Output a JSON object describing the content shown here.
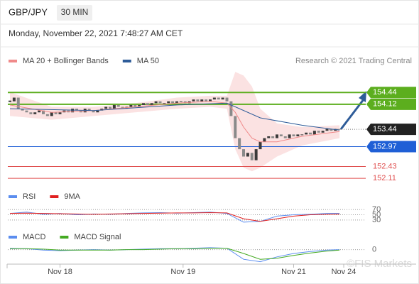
{
  "chart_data": [
    {
      "type": "candlestick",
      "title": "GBP/JPY",
      "timeframe": "30 MIN",
      "subtitle": "Monday, November 22, 2021 7:48:27 AM CET",
      "credit": "Research © 2021 Trading Central",
      "xlim": [
        0,
        80
      ],
      "ylim": [
        151.9,
        155.1
      ],
      "up_color": "#3a3a3a",
      "down_color": "#8a8a8a",
      "close": [
        154.2,
        154.3,
        154.0,
        153.95,
        153.9,
        153.85,
        153.9,
        153.95,
        153.85,
        153.8,
        153.9,
        153.85,
        153.9,
        153.95,
        153.9,
        154.0,
        153.95,
        153.9,
        154.0,
        153.95,
        153.9,
        153.95,
        154.0,
        154.05,
        154.0,
        154.1,
        154.05,
        154.0,
        154.05,
        154.1,
        154.05,
        154.1,
        154.15,
        154.1,
        154.15,
        154.2,
        154.15,
        154.15,
        154.2,
        154.15,
        154.2,
        154.2,
        154.15,
        154.2,
        154.25,
        154.2,
        154.25,
        154.2,
        154.25,
        154.3,
        154.25,
        154.3,
        154.2,
        153.8,
        153.2,
        152.9,
        152.7,
        152.8,
        152.6,
        152.9,
        153.1,
        153.2,
        153.25,
        153.2,
        153.3,
        153.25,
        153.2,
        153.3,
        153.25,
        153.3,
        153.3,
        153.35,
        153.3,
        153.4,
        153.35,
        153.4,
        153.45,
        153.4,
        153.45,
        153.44
      ],
      "series": [
        {
          "name": "MA 20 + Bollinger Bands",
          "color": "#f08a8a",
          "x": [
            0,
            10,
            20,
            30,
            40,
            48,
            52,
            54,
            56,
            58,
            60,
            64,
            70,
            79
          ],
          "values": [
            154.1,
            153.9,
            153.95,
            154.05,
            154.15,
            154.2,
            154.15,
            153.9,
            153.5,
            153.2,
            153.1,
            153.1,
            153.25,
            153.38
          ],
          "upper": [
            154.45,
            154.05,
            154.05,
            154.15,
            154.3,
            154.35,
            154.35,
            155.0,
            154.9,
            154.6,
            154.0,
            153.6,
            153.5,
            153.55
          ],
          "lower": [
            153.8,
            153.7,
            153.8,
            153.9,
            154.0,
            154.05,
            154.0,
            152.9,
            152.4,
            152.3,
            152.4,
            152.7,
            153.0,
            153.2
          ]
        },
        {
          "name": "MA 50",
          "color": "#2e5c99",
          "x": [
            0,
            20,
            40,
            52,
            60,
            70,
            79
          ],
          "values": [
            154.0,
            153.95,
            154.1,
            154.15,
            153.75,
            153.55,
            153.42
          ]
        }
      ],
      "levels": [
        {
          "value": 154.44,
          "kind": "resistance",
          "color": "#5cae1e"
        },
        {
          "value": 154.12,
          "kind": "resistance",
          "color": "#5cae1e"
        },
        {
          "value": 153.44,
          "kind": "current",
          "color": "#222222"
        },
        {
          "value": 152.97,
          "kind": "support",
          "color": "#1f5fd6"
        },
        {
          "value": 152.43,
          "kind": "minor",
          "color": "#e05050"
        },
        {
          "value": 152.11,
          "kind": "minor",
          "color": "#e05050"
        }
      ]
    },
    {
      "type": "line",
      "xlim": [
        0,
        80
      ],
      "ylim": [
        0,
        100
      ],
      "yticks": [
        70,
        50,
        30
      ],
      "series": [
        {
          "name": "RSI",
          "color": "#5b8def",
          "x": [
            0,
            4,
            8,
            12,
            16,
            20,
            24,
            28,
            32,
            36,
            40,
            44,
            48,
            52,
            56,
            60,
            64,
            68,
            72,
            76,
            79
          ],
          "values": [
            55,
            60,
            52,
            55,
            50,
            53,
            52,
            55,
            57,
            58,
            56,
            58,
            60,
            55,
            22,
            25,
            45,
            50,
            52,
            55,
            55
          ]
        },
        {
          "name": "9MA",
          "color": "#e02020",
          "x": [
            0,
            4,
            8,
            12,
            16,
            20,
            24,
            28,
            32,
            36,
            40,
            44,
            48,
            52,
            56,
            60,
            64,
            68,
            72,
            76,
            79
          ],
          "values": [
            55,
            56,
            55,
            54,
            53,
            52,
            53,
            54,
            55,
            56,
            57,
            57,
            58,
            57,
            35,
            25,
            35,
            45,
            50,
            52,
            53
          ]
        }
      ]
    },
    {
      "type": "line",
      "xlim": [
        0,
        80
      ],
      "ylim": [
        -0.3,
        0.2
      ],
      "yticks": [
        0
      ],
      "watermark": "©FIS Markets",
      "xticks": [
        {
          "value": 12,
          "label": "Nov 18"
        },
        {
          "value": 41.5,
          "label": "Nov 19"
        },
        {
          "value": 68,
          "label": "Nov 21"
        },
        {
          "value": 80,
          "label": "Nov 24"
        }
      ],
      "series": [
        {
          "name": "MACD",
          "color": "#5b8def",
          "x": [
            0,
            4,
            8,
            12,
            16,
            20,
            24,
            28,
            32,
            36,
            40,
            44,
            48,
            52,
            56,
            60,
            64,
            68,
            72,
            76,
            79
          ],
          "values": [
            0.03,
            0.02,
            -0.01,
            -0.02,
            -0.01,
            0.0,
            -0.01,
            0.0,
            0.01,
            0.02,
            0.02,
            0.03,
            0.04,
            0.03,
            -0.2,
            -0.25,
            -0.15,
            -0.08,
            -0.04,
            -0.01,
            0.0
          ]
        },
        {
          "name": "MACD Signal",
          "color": "#44aa22",
          "x": [
            0,
            4,
            8,
            12,
            16,
            20,
            24,
            28,
            32,
            36,
            40,
            44,
            48,
            52,
            56,
            60,
            64,
            68,
            72,
            76,
            79
          ],
          "values": [
            0.02,
            0.02,
            0.01,
            -0.01,
            -0.01,
            -0.01,
            -0.01,
            0.0,
            0.0,
            0.01,
            0.02,
            0.02,
            0.03,
            0.03,
            -0.08,
            -0.2,
            -0.18,
            -0.12,
            -0.07,
            -0.03,
            -0.01
          ]
        }
      ]
    }
  ]
}
